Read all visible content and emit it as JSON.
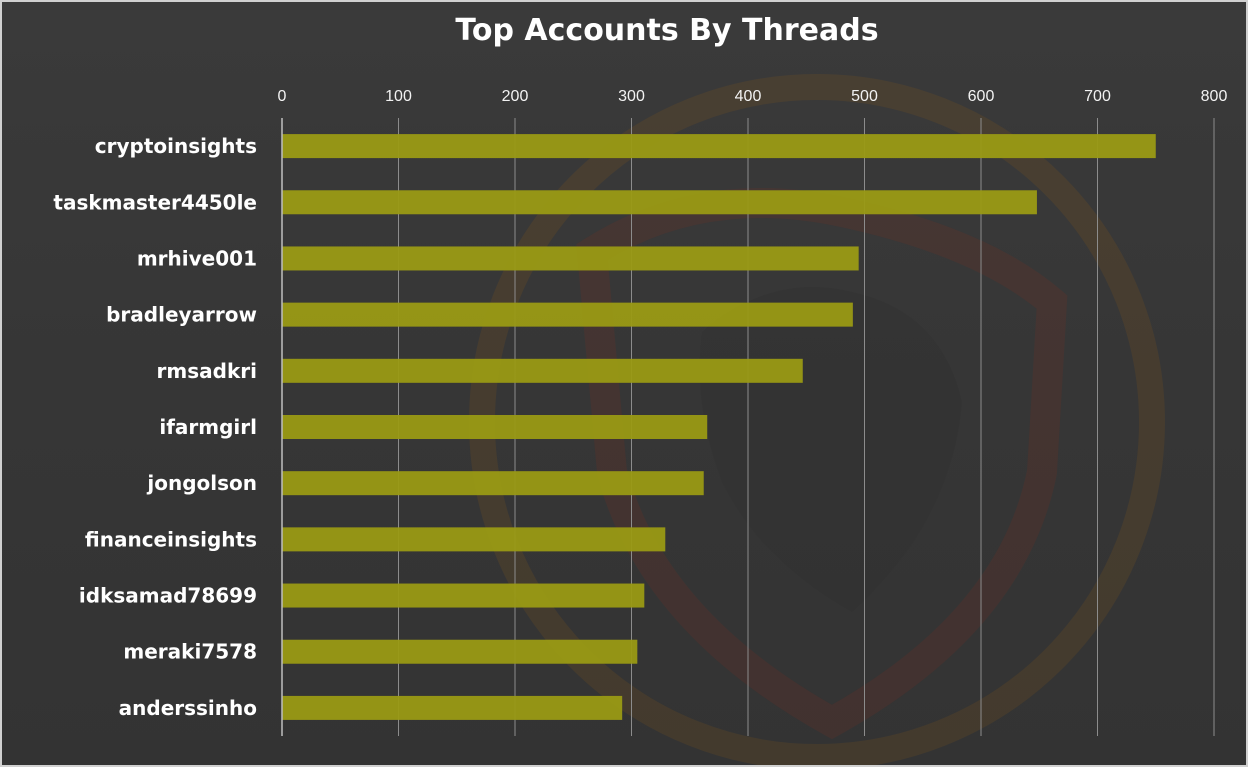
{
  "chart_data": {
    "type": "bar",
    "orientation": "horizontal",
    "title": "Top Accounts By Threads",
    "xlabel": "",
    "ylabel": "",
    "xlim": [
      0,
      800
    ],
    "xticks": [
      "0",
      "100",
      "200",
      "300",
      "400",
      "500",
      "600",
      "700",
      "800"
    ],
    "categories": [
      "cryptoinsights",
      "taskmaster4450le",
      "mrhive001",
      "bradleyarrow",
      "rmsadkri",
      "ifarmgirl",
      "jongolson",
      "financeinsights",
      "idksamad78699",
      "meraki7578",
      "anderssinho"
    ],
    "values": [
      750,
      648,
      495,
      490,
      447,
      365,
      362,
      329,
      311,
      305,
      292
    ],
    "grid": true,
    "legend": "none",
    "axis_position": "top",
    "colors": {
      "bar": "#9a9a14",
      "background": "#383838",
      "grid": "#8c8c8c",
      "text": "#ffffff",
      "watermark": "#7a2e22"
    }
  }
}
